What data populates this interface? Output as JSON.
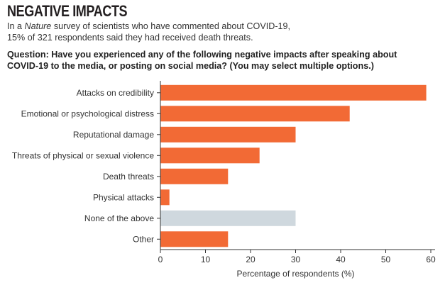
{
  "header": {
    "title": "NEGATIVE IMPACTS",
    "subtitle_line1_prefix": "In a ",
    "subtitle_line1_italic": "Nature",
    "subtitle_line1_suffix": " survey of scientists who have commented about COVID-19,",
    "subtitle_line2": "15% of 321 respondents said they had received death threats.",
    "question_line1": "Question: Have you experienced any of the following negative impacts after speaking about",
    "question_line2": "COVID-19 to the media, or posting on social media? (You may select multiple options.)"
  },
  "chart_data": {
    "type": "bar",
    "orientation": "horizontal",
    "categories": [
      "Attacks on credibility",
      "Emotional or psychological distress",
      "Reputational damage",
      "Threats of physical or sexual violence",
      "Death threats",
      "Physical attacks",
      "None of the above",
      "Other"
    ],
    "values": [
      59,
      42,
      30,
      22,
      15,
      2,
      30,
      15
    ],
    "colors": [
      "#f26a35",
      "#f26a35",
      "#f26a35",
      "#f26a35",
      "#f26a35",
      "#f26a35",
      "#cfd8de",
      "#f26a35"
    ],
    "xlabel": "Percentage of respondents (%)",
    "xlim": [
      0,
      60
    ],
    "xticks": [
      "0",
      "10",
      "20",
      "30",
      "40",
      "50",
      "60"
    ],
    "grid": false
  }
}
